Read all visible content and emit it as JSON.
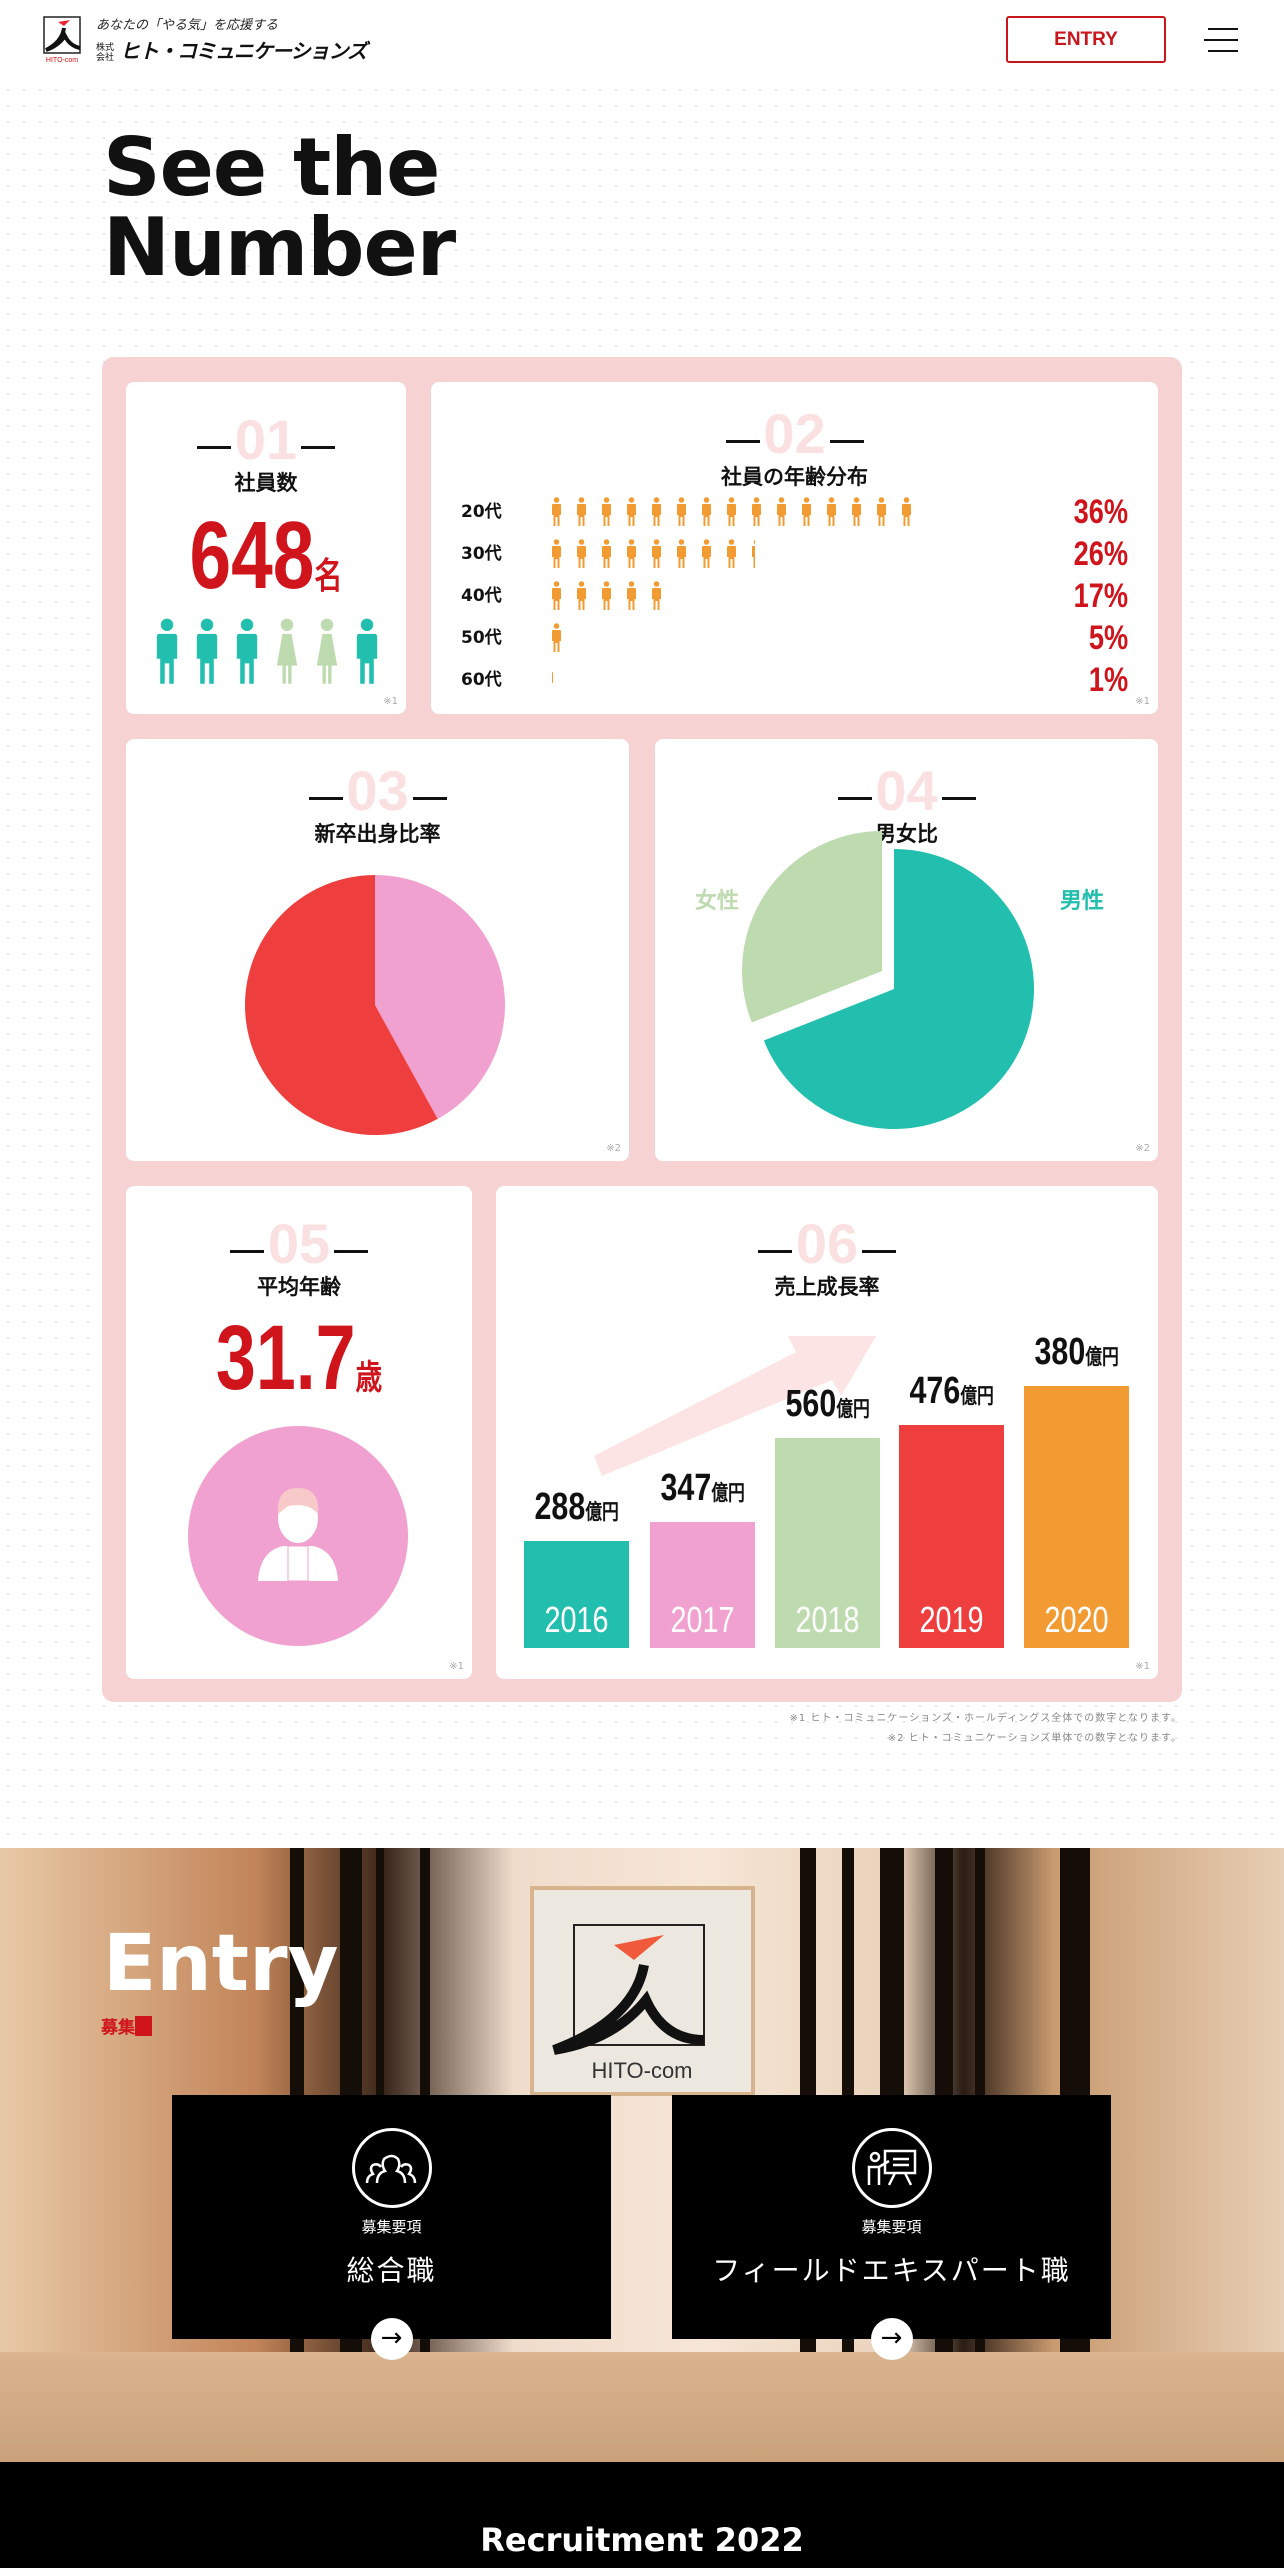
{
  "header": {
    "tagline": "あなたの「やる気」を応援する",
    "company_prefix": "株式会社",
    "company_name": "ヒト・コミュニケーションズ",
    "logo_text": "HITO-com",
    "entry_label": "ENTRY",
    "menu_icon": "hamburger-icon"
  },
  "hero": {
    "title_line1": "See the",
    "title_line2": "Number"
  },
  "cards": {
    "employees": {
      "num": "01",
      "title": "社員数",
      "value": "648",
      "unit": "名",
      "note": "※1",
      "figures": [
        "male",
        "male",
        "male",
        "female",
        "female",
        "male"
      ]
    },
    "age_distribution": {
      "num": "02",
      "title": "社員の年齢分布",
      "note": "※1",
      "rows": [
        {
          "label": "20代",
          "percent": "36%",
          "icon_count": 15
        },
        {
          "label": "30代",
          "percent": "26%",
          "icon_count": 8.4
        },
        {
          "label": "40代",
          "percent": "17%",
          "icon_count": 5
        },
        {
          "label": "50代",
          "percent": "5%",
          "icon_count": 1
        },
        {
          "label": "60代",
          "percent": "1%",
          "icon_count": 0.3
        }
      ]
    },
    "new_grad_ratio": {
      "num": "03",
      "title": "新卒出身比率",
      "note": "※2",
      "slices": [
        {
          "value": 42,
          "color": "#f0a1cf"
        },
        {
          "value": 58,
          "color": "#ef3e3e"
        }
      ]
    },
    "gender_ratio": {
      "num": "04",
      "title": "男女比",
      "note": "※2",
      "female_label": "女性",
      "male_label": "男性",
      "slices": [
        {
          "label": "男性",
          "value": 69,
          "color": "#22bfae"
        },
        {
          "label": "女性",
          "value": 31,
          "color": "#bedbb0"
        }
      ]
    },
    "average_age": {
      "num": "05",
      "title": "平均年齢",
      "value": "31.7",
      "unit": "歳",
      "note": "※1"
    },
    "sales_growth": {
      "num": "06",
      "title": "売上成長率",
      "note": "※1",
      "unit": "億円"
    }
  },
  "chart_data": {
    "type": "bar",
    "title": "売上成長率",
    "categories": [
      "2016",
      "2017",
      "2018",
      "2019",
      "2020"
    ],
    "values": [
      288,
      347,
      560,
      476,
      380
    ],
    "unit": "億円",
    "colors": [
      "#22bfae",
      "#f0a1cf",
      "#bedbb0",
      "#ef3e3e",
      "#f29b32"
    ]
  },
  "footnotes": [
    "※1 ヒト・コミュニケーションズ・ホールディングス全体での数字となります。",
    "※2 ヒト・コミュニケーションズ単体での数字となります。"
  ],
  "entry": {
    "title": "Entry",
    "subtitle": "募集",
    "sign_text": "HITO-com",
    "boxes": [
      {
        "small": "募集要項",
        "label": "総合職",
        "icon": "group-icon"
      },
      {
        "small": "募集要項",
        "label": "フィールドエキスパート職",
        "icon": "presenter-icon"
      }
    ]
  },
  "footer": {
    "text": "Recruitment 2022"
  },
  "colors": {
    "accent": "#d0141c",
    "panel": "#f6d2d3",
    "teal": "#22bfae",
    "orange": "#f29b32",
    "green": "#bedbb0",
    "pink": "#f0a1cf"
  }
}
